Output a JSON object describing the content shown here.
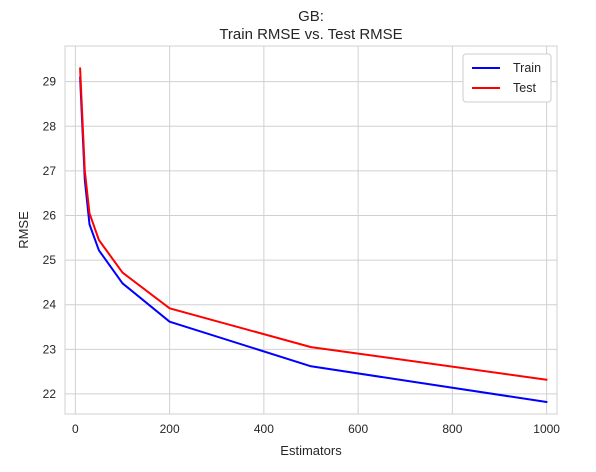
{
  "chart_data": {
    "type": "line",
    "title_lines": [
      "GB:",
      "Train RMSE vs. Test RMSE"
    ],
    "xlabel": "Estimators",
    "ylabel": "RMSE",
    "xlim": [
      -22,
      1022
    ],
    "ylim": [
      21.55,
      29.8
    ],
    "xticks": [
      0,
      200,
      400,
      600,
      800,
      1000
    ],
    "yticks": [
      22,
      23,
      24,
      25,
      26,
      27,
      28,
      29
    ],
    "grid": true,
    "legend_position": "top-right",
    "x": [
      10,
      20,
      30,
      50,
      100,
      200,
      500,
      1000
    ],
    "series": [
      {
        "name": "Train",
        "color": "#0000ff",
        "values": [
          29.1,
          26.8,
          25.8,
          25.22,
          24.48,
          23.62,
          22.62,
          21.82
        ]
      },
      {
        "name": "Test",
        "color": "#ff0000",
        "values": [
          29.3,
          27.0,
          26.05,
          25.45,
          24.72,
          23.92,
          23.05,
          22.32
        ]
      }
    ]
  }
}
